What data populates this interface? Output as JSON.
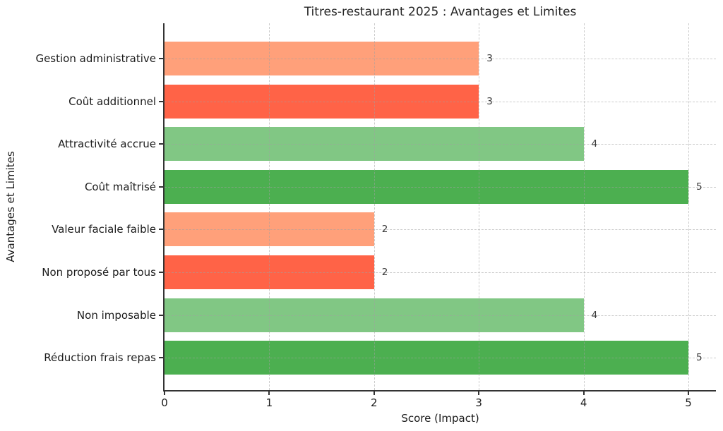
{
  "chart_data": {
    "type": "bar",
    "orientation": "horizontal",
    "title": "Titres-restaurant 2025 : Avantages et Limites",
    "xlabel": "Score (Impact)",
    "ylabel": "Avantages et Limites",
    "categories": [
      "Gestion administrative",
      "Coût additionnel",
      "Attractivité accrue",
      "Coût maîtrisé",
      "Valeur faciale faible",
      "Non proposé par tous",
      "Non imposable",
      "Réduction frais repas"
    ],
    "values": [
      3,
      3,
      4,
      5,
      2,
      2,
      4,
      5
    ],
    "bar_colors": [
      "#FFA07A",
      "#FF6347",
      "#81C784",
      "#4CAF50",
      "#FFA07A",
      "#FF6347",
      "#81C784",
      "#4CAF50"
    ],
    "value_labels": [
      "3",
      "3",
      "4",
      "5",
      "2",
      "2",
      "4",
      "5"
    ],
    "x_ticks": [
      0,
      1,
      2,
      3,
      4,
      5
    ],
    "xlim": [
      0,
      5.26
    ],
    "grid": {
      "on": true,
      "style": "dashed",
      "color": "#a0a0a0"
    },
    "legend": null,
    "colors": {
      "negative_light": "#FFA07A",
      "negative_strong": "#FF6347",
      "positive_light": "#81C784",
      "positive_strong": "#4CAF50",
      "spine": "#333333",
      "text": "#1c1c1c"
    }
  }
}
